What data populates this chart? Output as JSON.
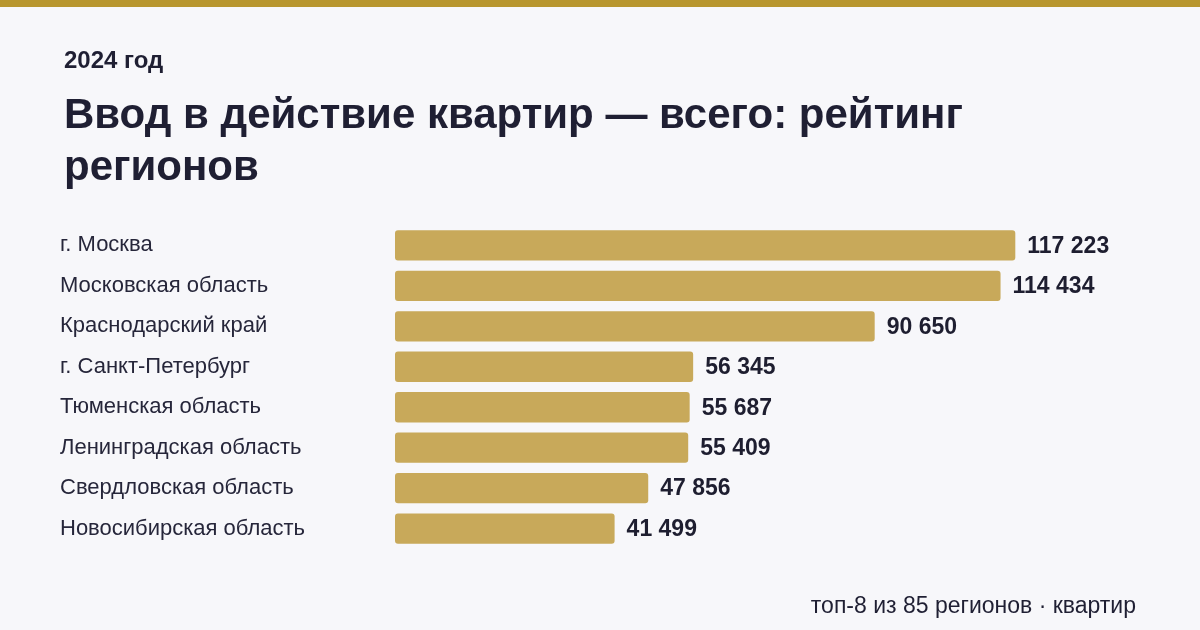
{
  "chart_data": {
    "type": "bar",
    "orientation": "horizontal",
    "subtitle": "2024 год",
    "title": "Ввод в действие квартир — всего: рейтинг регионов",
    "categories": [
      "г. Москва",
      "Московская область",
      "Краснодарский край",
      "г. Санкт-Петербург",
      "Тюменская область",
      "Ленинградская область",
      "Свердловская область",
      "Новосибирская область"
    ],
    "values": [
      117223,
      114434,
      90650,
      56345,
      55687,
      55409,
      47856,
      41499
    ],
    "value_labels": [
      "117 223",
      "114 434",
      "90 650",
      "56 345",
      "55 687",
      "55 409",
      "47 856",
      "41 499"
    ],
    "color": "#c8a95a",
    "legend": false,
    "tick_labels": "y",
    "annotations": [
      "топ-8 из 85 регионов · квартир"
    ]
  }
}
